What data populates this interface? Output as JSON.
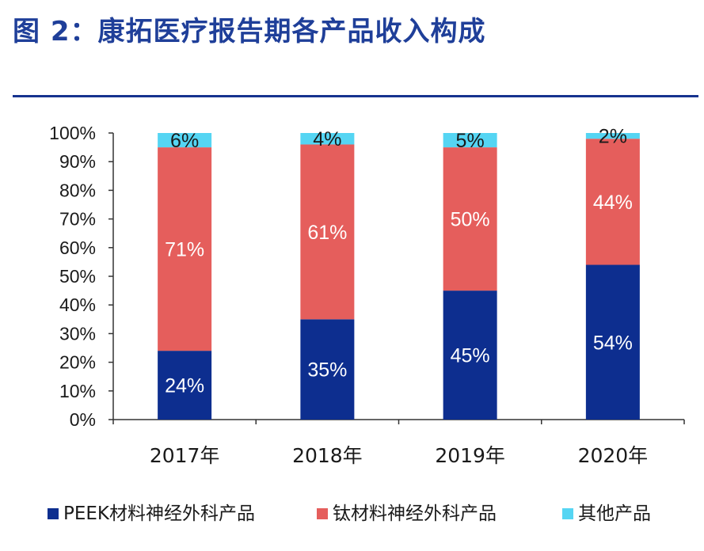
{
  "title": "图 2：康拓医疗报告期各产品收入构成",
  "chart_data": {
    "type": "bar",
    "stacked": true,
    "categories": [
      "2017年",
      "2018年",
      "2019年",
      "2020年"
    ],
    "series": [
      {
        "name": "PEEK材料神经外科产品",
        "color": "#0d2e8f",
        "values": [
          24,
          35,
          45,
          54
        ],
        "labels": [
          "24%",
          "35%",
          "45%",
          "54%"
        ],
        "label_color": "#ffffff"
      },
      {
        "name": "钛材料神经外科产品",
        "color": "#e55e5c",
        "values": [
          71,
          61,
          50,
          44
        ],
        "labels": [
          "71%",
          "61%",
          "50%",
          "44%"
        ],
        "label_color": "#ffffff"
      },
      {
        "name": "其他产品",
        "color": "#55d5f3",
        "values": [
          6,
          4,
          5,
          2
        ],
        "labels": [
          "6%",
          "4%",
          "5%",
          "2%"
        ],
        "label_color": "#1a1a1a"
      }
    ],
    "ylim": [
      0,
      100
    ],
    "yticks": [
      "0%",
      "10%",
      "20%",
      "30%",
      "40%",
      "50%",
      "60%",
      "70%",
      "80%",
      "90%",
      "100%"
    ],
    "legend_position": "bottom",
    "grid": false
  }
}
